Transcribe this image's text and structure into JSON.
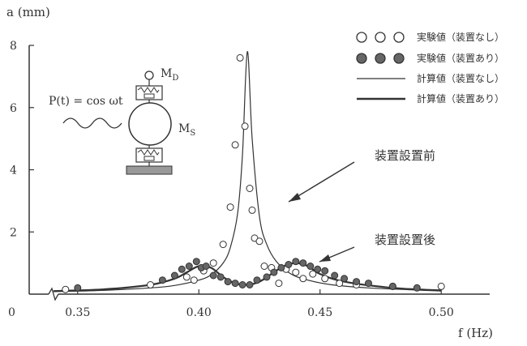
{
  "chart_data": {
    "type": "scatter",
    "xlabel": "f (Hz)",
    "ylabel": "a (mm)",
    "xlim": [
      0.33,
      0.52
    ],
    "ylim": [
      0,
      8
    ],
    "x_ticks": [
      "0.35",
      "0.40",
      "0.45",
      "0.50"
    ],
    "y_ticks": [
      "0",
      "2",
      "4",
      "6",
      "8"
    ],
    "grid": false,
    "legend_position": "top-right",
    "legend": [
      {
        "label": "実験値（装置なし）",
        "marker": "open-circle"
      },
      {
        "label": "実験値（装置あり）",
        "marker": "filled-circle"
      },
      {
        "label": "計算値（装置なし）",
        "marker": "thin-line"
      },
      {
        "label": "計算値（装置あり）",
        "marker": "thick-line"
      }
    ],
    "annotations": [
      "装置設置前",
      "装置設置後"
    ],
    "series": [
      {
        "name": "実験値（装置なし）",
        "marker": "open-circle",
        "x": [
          0.345,
          0.38,
          0.395,
          0.398,
          0.402,
          0.406,
          0.41,
          0.413,
          0.415,
          0.417,
          0.419,
          0.421,
          0.422,
          0.423,
          0.425,
          0.427,
          0.43,
          0.433,
          0.436,
          0.44,
          0.443,
          0.447,
          0.452,
          0.458,
          0.465,
          0.48,
          0.5
        ],
        "y": [
          0.15,
          0.3,
          0.55,
          0.45,
          0.75,
          1.0,
          1.6,
          2.8,
          4.8,
          7.6,
          5.4,
          3.4,
          2.7,
          1.8,
          1.7,
          0.9,
          0.85,
          0.35,
          0.8,
          0.7,
          0.5,
          0.65,
          0.5,
          0.35,
          0.3,
          0.25,
          0.25
        ]
      },
      {
        "name": "実験値（装置あり）",
        "marker": "filled-circle",
        "x": [
          0.35,
          0.385,
          0.39,
          0.393,
          0.396,
          0.399,
          0.401,
          0.403,
          0.406,
          0.409,
          0.412,
          0.415,
          0.418,
          0.421,
          0.424,
          0.428,
          0.431,
          0.434,
          0.437,
          0.44,
          0.443,
          0.446,
          0.449,
          0.452,
          0.456,
          0.46,
          0.465,
          0.47,
          0.48,
          0.49
        ],
        "y": [
          0.2,
          0.45,
          0.6,
          0.8,
          0.9,
          1.05,
          0.85,
          0.9,
          0.6,
          0.55,
          0.4,
          0.35,
          0.3,
          0.3,
          0.45,
          0.55,
          0.7,
          0.85,
          0.95,
          1.05,
          1.0,
          0.9,
          0.8,
          0.75,
          0.6,
          0.5,
          0.4,
          0.35,
          0.25,
          0.2
        ]
      },
      {
        "name": "計算値（装置なし）",
        "line": "thin",
        "x": [
          0.34,
          0.36,
          0.38,
          0.39,
          0.4,
          0.405,
          0.41,
          0.413,
          0.416,
          0.418,
          0.42,
          0.422,
          0.425,
          0.428,
          0.432,
          0.438,
          0.445,
          0.455,
          0.47,
          0.5
        ],
        "y": [
          0.08,
          0.12,
          0.2,
          0.28,
          0.45,
          0.62,
          1.0,
          1.5,
          2.6,
          4.5,
          7.8,
          5.0,
          2.5,
          1.6,
          1.05,
          0.65,
          0.45,
          0.3,
          0.2,
          0.1
        ]
      },
      {
        "name": "計算値（装置あり）",
        "line": "thick",
        "x": [
          0.34,
          0.36,
          0.38,
          0.39,
          0.395,
          0.4,
          0.405,
          0.41,
          0.415,
          0.42,
          0.425,
          0.43,
          0.435,
          0.44,
          0.445,
          0.45,
          0.46,
          0.48,
          0.5
        ],
        "y": [
          0.1,
          0.15,
          0.3,
          0.5,
          0.7,
          0.9,
          0.85,
          0.55,
          0.35,
          0.3,
          0.4,
          0.65,
          0.9,
          1.0,
          0.9,
          0.65,
          0.4,
          0.2,
          0.12
        ]
      }
    ]
  },
  "inset": {
    "force_label": "P(t) = cos ωt",
    "md_label": "M",
    "md_sub": "D",
    "ms_label": "M",
    "ms_sub": "S"
  },
  "colors": {
    "ink": "#333333",
    "marker_fill": "#666666",
    "background": "#ffffff"
  }
}
